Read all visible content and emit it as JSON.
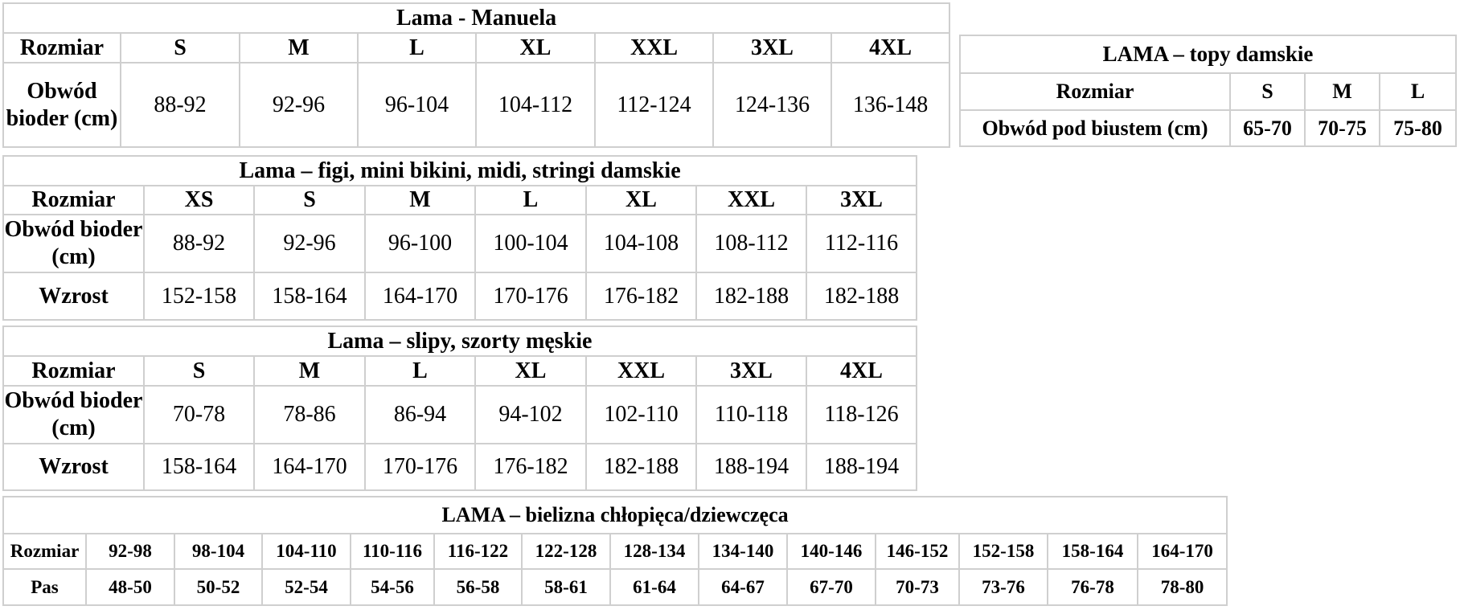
{
  "tables": [
    {
      "id": "t-manuela",
      "title": "Lama - Manuela",
      "rows": [
        [
          "Rozmiar",
          "S",
          "M",
          "L",
          "XL",
          "XXL",
          "3XL",
          "4XL"
        ],
        [
          "Obwód bioder (cm)",
          "88-92",
          "92-96",
          "96-104",
          "104-112",
          "112-124",
          "124-136",
          "136-148"
        ]
      ]
    },
    {
      "id": "t-topy",
      "title": "LAMA – topy damskie",
      "rows": [
        [
          "Rozmiar",
          "S",
          "M",
          "L"
        ],
        [
          "Obwód pod biustem (cm)",
          "65-70",
          "70-75",
          "75-80"
        ]
      ]
    },
    {
      "id": "t-figi",
      "title": "Lama – figi, mini bikini, midi, stringi damskie",
      "rows": [
        [
          "Rozmiar",
          "XS",
          "S",
          "M",
          "L",
          "XL",
          "XXL",
          "3XL"
        ],
        [
          "Obwód bioder (cm)",
          "88-92",
          "92-96",
          "96-100",
          "100-104",
          "104-108",
          "108-112",
          "112-116"
        ],
        [
          "Wzrost",
          "152-158",
          "158-164",
          "164-170",
          "170-176",
          "176-182",
          "182-188",
          "182-188"
        ]
      ]
    },
    {
      "id": "t-slipy",
      "title": "Lama – slipy, szorty męskie",
      "rows": [
        [
          "Rozmiar",
          "S",
          "M",
          "L",
          "XL",
          "XXL",
          "3XL",
          "4XL"
        ],
        [
          "Obwód bioder (cm)",
          "70-78",
          "78-86",
          "86-94",
          "94-102",
          "102-110",
          "110-118",
          "118-126"
        ],
        [
          "Wzrost",
          "158-164",
          "164-170",
          "170-176",
          "176-182",
          "182-188",
          "188-194",
          "188-194"
        ]
      ]
    },
    {
      "id": "t-kids",
      "title": "LAMA – bielizna chłopięca/dziewczęca",
      "rows": [
        [
          "Rozmiar",
          "92-98",
          "98-104",
          "104-110",
          "110-116",
          "116-122",
          "122-128",
          "128-134",
          "134-140",
          "140-146",
          "146-152",
          "152-158",
          "158-164",
          "164-170"
        ],
        [
          "Pas",
          "48-50",
          "50-52",
          "52-54",
          "54-56",
          "56-58",
          "58-61",
          "61-64",
          "64-67",
          "67-70",
          "70-73",
          "73-76",
          "76-78",
          "78-80"
        ]
      ]
    }
  ]
}
